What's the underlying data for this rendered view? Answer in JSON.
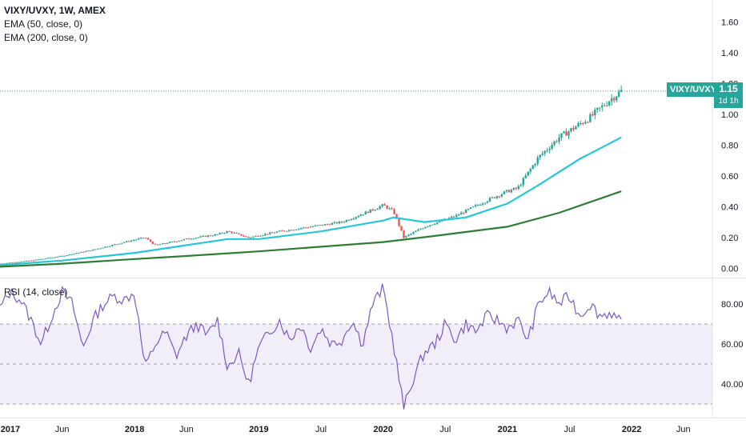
{
  "legend": {
    "symbol": "VIXY/UVXY, 1W, AMEX",
    "ema50": "EMA (50, close, 0)",
    "ema200": "EMA (200, close, 0)",
    "rsi": "RSI (14, close)"
  },
  "price_tag": {
    "symbol": "VIXY/UVXY",
    "value": "1.15",
    "interval": "1d 1h"
  },
  "colors": {
    "up": "#26a69a",
    "down": "#ef5350",
    "ema50": "#26c6da",
    "ema200": "#2e7d32",
    "rsi": "#7e57c2",
    "rsi_band": "#7e57c2",
    "price_line": "#26a69a"
  },
  "chart_data": [
    {
      "type": "candlestick",
      "title": "VIXY/UVXY, 1W, AMEX",
      "y_ticks": [
        "1.60",
        "1.40",
        "1.20",
        "1.00",
        "0.80",
        "0.60",
        "0.40",
        "0.20",
        "0.00"
      ],
      "ylim": [
        -0.05,
        1.7
      ],
      "x_ticks": [
        "2017",
        "Jun",
        "2018",
        "Jun",
        "2019",
        "Jul",
        "2020",
        "Jul",
        "2021",
        "Jul",
        "2022",
        "Jun"
      ],
      "x_tick_dates": [
        "2017-01",
        "2017-06",
        "2018-01",
        "2018-06",
        "2019-01",
        "2019-07",
        "2020-01",
        "2020-07",
        "2021-01",
        "2021-07",
        "2022-01",
        "2022-06"
      ],
      "last_value": 1.15,
      "close_anchors": [
        [
          "2016-12",
          0.03
        ],
        [
          "2017-03",
          0.05
        ],
        [
          "2017-06",
          0.08
        ],
        [
          "2017-09",
          0.12
        ],
        [
          "2017-12",
          0.17
        ],
        [
          "2018-02",
          0.2
        ],
        [
          "2018-03",
          0.15
        ],
        [
          "2018-06",
          0.19
        ],
        [
          "2018-09",
          0.22
        ],
        [
          "2018-10",
          0.24
        ],
        [
          "2018-12",
          0.2
        ],
        [
          "2019-03",
          0.24
        ],
        [
          "2019-06",
          0.27
        ],
        [
          "2019-09",
          0.3
        ],
        [
          "2019-12",
          0.38
        ],
        [
          "2020-01",
          0.41
        ],
        [
          "2020-02",
          0.37
        ],
        [
          "2020-03",
          0.2
        ],
        [
          "2020-05",
          0.27
        ],
        [
          "2020-08",
          0.34
        ],
        [
          "2020-11",
          0.44
        ],
        [
          "2021-01",
          0.5
        ],
        [
          "2021-02",
          0.52
        ],
        [
          "2021-04",
          0.72
        ],
        [
          "2021-06",
          0.85
        ],
        [
          "2021-09",
          0.98
        ],
        [
          "2021-11",
          1.1
        ],
        [
          "2021-12",
          1.15
        ]
      ],
      "series": [
        {
          "name": "EMA (50, close, 0)",
          "points": [
            [
              "2016-12",
              0.02
            ],
            [
              "2017-06",
              0.05
            ],
            [
              "2018-01",
              0.1
            ],
            [
              "2018-06",
              0.15
            ],
            [
              "2018-10",
              0.19
            ],
            [
              "2019-01",
              0.19
            ],
            [
              "2019-07",
              0.24
            ],
            [
              "2020-01",
              0.31
            ],
            [
              "2020-02",
              0.33
            ],
            [
              "2020-05",
              0.3
            ],
            [
              "2020-09",
              0.33
            ],
            [
              "2021-01",
              0.42
            ],
            [
              "2021-04",
              0.54
            ],
            [
              "2021-08",
              0.71
            ],
            [
              "2021-12",
              0.85
            ]
          ]
        },
        {
          "name": "EMA (200, close, 0)",
          "points": [
            [
              "2016-12",
              0.01
            ],
            [
              "2017-06",
              0.03
            ],
            [
              "2018-01",
              0.06
            ],
            [
              "2018-06",
              0.08
            ],
            [
              "2019-01",
              0.11
            ],
            [
              "2019-07",
              0.14
            ],
            [
              "2020-01",
              0.17
            ],
            [
              "2020-06",
              0.21
            ],
            [
              "2021-01",
              0.27
            ],
            [
              "2021-06",
              0.36
            ],
            [
              "2021-12",
              0.5
            ]
          ]
        }
      ]
    },
    {
      "type": "line",
      "title": "RSI (14, close)",
      "y_ticks": [
        "80.00",
        "60.00",
        "40.00"
      ],
      "ylim": [
        24,
        92
      ],
      "band": [
        30,
        70
      ],
      "mid": 50,
      "series": [
        {
          "name": "RSI (14, close)",
          "points": [
            [
              "2016-12",
              78
            ],
            [
              "2017-01",
              86
            ],
            [
              "2017-02",
              82
            ],
            [
              "2017-03",
              72
            ],
            [
              "2017-04",
              60
            ],
            [
              "2017-05",
              74
            ],
            [
              "2017-06",
              86
            ],
            [
              "2017-07",
              80
            ],
            [
              "2017-08",
              58
            ],
            [
              "2017-09",
              72
            ],
            [
              "2017-10",
              80
            ],
            [
              "2017-11",
              84
            ],
            [
              "2017-12",
              82
            ],
            [
              "2018-01",
              86
            ],
            [
              "2018-02",
              48
            ],
            [
              "2018-03",
              60
            ],
            [
              "2018-04",
              66
            ],
            [
              "2018-05",
              54
            ],
            [
              "2018-06",
              64
            ],
            [
              "2018-07",
              70
            ],
            [
              "2018-08",
              64
            ],
            [
              "2018-09",
              72
            ],
            [
              "2018-10",
              48
            ],
            [
              "2018-11",
              56
            ],
            [
              "2018-12",
              40
            ],
            [
              "2019-01",
              58
            ],
            [
              "2019-02",
              66
            ],
            [
              "2019-03",
              72
            ],
            [
              "2019-04",
              62
            ],
            [
              "2019-05",
              70
            ],
            [
              "2019-06",
              58
            ],
            [
              "2019-07",
              68
            ],
            [
              "2019-08",
              60
            ],
            [
              "2019-09",
              62
            ],
            [
              "2019-10",
              72
            ],
            [
              "2019-11",
              60
            ],
            [
              "2019-12",
              80
            ],
            [
              "2020-01",
              88
            ],
            [
              "2020-02",
              60
            ],
            [
              "2020-03",
              28
            ],
            [
              "2020-04",
              44
            ],
            [
              "2020-05",
              56
            ],
            [
              "2020-06",
              60
            ],
            [
              "2020-07",
              70
            ],
            [
              "2020-08",
              62
            ],
            [
              "2020-09",
              70
            ],
            [
              "2020-10",
              66
            ],
            [
              "2020-11",
              74
            ],
            [
              "2020-12",
              72
            ],
            [
              "2021-01",
              68
            ],
            [
              "2021-02",
              72
            ],
            [
              "2021-03",
              62
            ],
            [
              "2021-04",
              80
            ],
            [
              "2021-05",
              86
            ],
            [
              "2021-06",
              80
            ],
            [
              "2021-07",
              84
            ],
            [
              "2021-08",
              74
            ],
            [
              "2021-09",
              80
            ],
            [
              "2021-10",
              74
            ],
            [
              "2021-11",
              76
            ],
            [
              "2021-12",
              70
            ]
          ]
        }
      ]
    }
  ]
}
